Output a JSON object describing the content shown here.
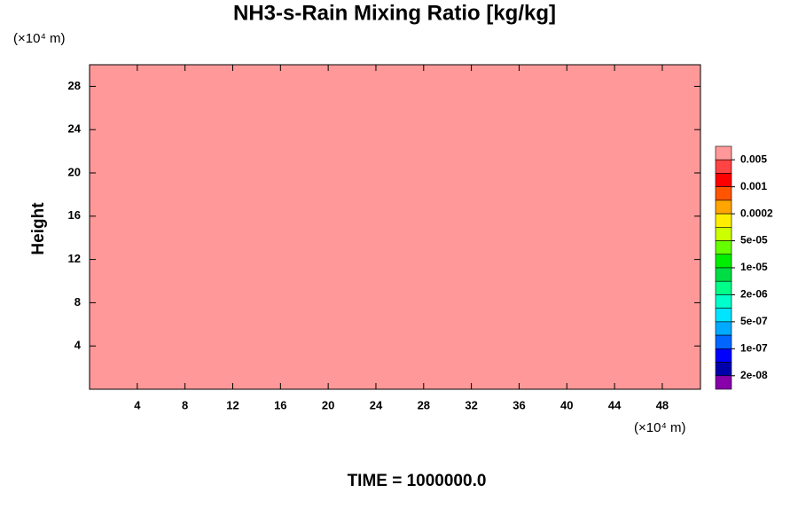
{
  "chart_data": {
    "type": "contour",
    "title": "NH3-s-Rain Mixing Ratio [kg/kg]",
    "ylabel": "Height",
    "y_unit": "(×10⁴ m)",
    "x_unit": "(×10⁴ m)",
    "footer": "TIME = 1000000.0",
    "fill_color": "#ff9999",
    "xlim": [
      0,
      51.2
    ],
    "xticks": [
      4,
      8,
      12,
      16,
      20,
      24,
      28,
      32,
      36,
      40,
      44,
      48
    ],
    "ylim": [
      0,
      30
    ],
    "yticks": [
      4,
      8,
      12,
      16,
      20,
      24,
      28
    ],
    "colorbar": {
      "colors": [
        "#ff9999",
        "#ff4444",
        "#ff0000",
        "#ff5500",
        "#ffa500",
        "#ffee00",
        "#ccff00",
        "#66ff00",
        "#00ee00",
        "#00dd44",
        "#00ff88",
        "#00ffcc",
        "#00e5ff",
        "#00aaff",
        "#0066ff",
        "#0000ff",
        "#0000aa",
        "#8800aa"
      ],
      "ticks": [
        0.005,
        0.001,
        0.0002,
        {
          "value": 5e-05,
          "label": "5e-05"
        },
        {
          "value": 1e-05,
          "label": "1e-05"
        },
        {
          "value": 2e-06,
          "label": "2e-06"
        },
        {
          "value": 5e-07,
          "label": "5e-07"
        },
        {
          "value": 1e-07,
          "label": "1e-07"
        },
        {
          "value": 2e-08,
          "label": "2e-08"
        }
      ]
    }
  }
}
